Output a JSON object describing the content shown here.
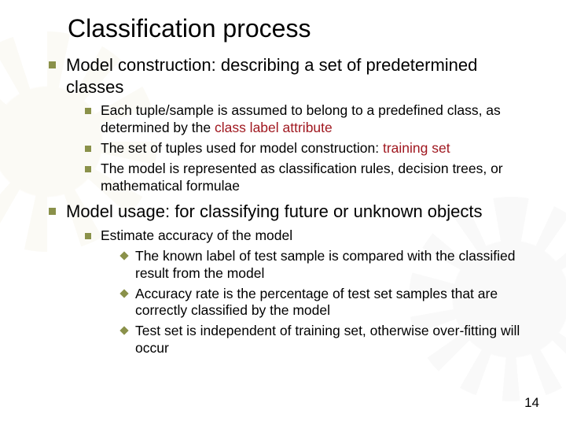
{
  "colors": {
    "text": "#000000",
    "highlight": "#a01820",
    "bullet": "#8a914a",
    "background": "#ffffff"
  },
  "typography": {
    "family": "Arial",
    "title_size_pt": 32,
    "body_size_pt": 22,
    "sub_size_pt": 17.5,
    "subsub_size_pt": 17.5
  },
  "title": "Classification process",
  "page_number": "14",
  "b1": {
    "text_a": "Model construction: describing a set of predetermined classes",
    "sub1_a": "Each tuple/sample is assumed to belong to a predefined class, as determined by the ",
    "sub1_hl": "class label attribute",
    "sub2_a": "The set of tuples used for model construction: ",
    "sub2_hl": "training set",
    "sub3_a": "The model is represented as classification rules, decision trees, or mathematical formulae"
  },
  "b2": {
    "text_a": "Model usage: for classifying future or unknown objects",
    "sub1_a": "Estimate accuracy of the model",
    "ss1": "The known label of test sample is compared with the classified result from the model",
    "ss2": "Accuracy rate is the percentage of test set samples that are correctly classified by the model",
    "ss3": "Test set is independent of training set, otherwise over-fitting will occur"
  }
}
